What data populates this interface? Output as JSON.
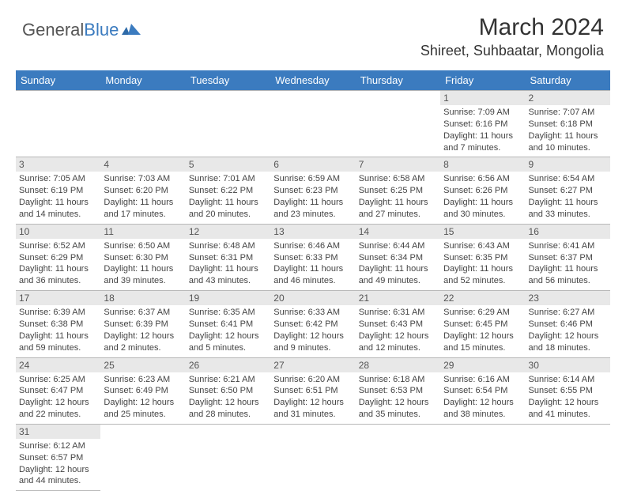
{
  "logo": {
    "general": "General",
    "blue": "Blue"
  },
  "title": "March 2024",
  "location": "Shireet, Suhbaatar, Mongolia",
  "colors": {
    "header_bg": "#3b7bbf",
    "header_text": "#ffffff",
    "daynum_bg": "#e8e8e8",
    "text": "#444444",
    "border": "#b8b8b8"
  },
  "dayHeaders": [
    "Sunday",
    "Monday",
    "Tuesday",
    "Wednesday",
    "Thursday",
    "Friday",
    "Saturday"
  ],
  "weeks": [
    [
      {
        "n": "",
        "sr": "",
        "ss": "",
        "dl": ""
      },
      {
        "n": "",
        "sr": "",
        "ss": "",
        "dl": ""
      },
      {
        "n": "",
        "sr": "",
        "ss": "",
        "dl": ""
      },
      {
        "n": "",
        "sr": "",
        "ss": "",
        "dl": ""
      },
      {
        "n": "",
        "sr": "",
        "ss": "",
        "dl": ""
      },
      {
        "n": "1",
        "sr": "Sunrise: 7:09 AM",
        "ss": "Sunset: 6:16 PM",
        "dl": "Daylight: 11 hours and 7 minutes."
      },
      {
        "n": "2",
        "sr": "Sunrise: 7:07 AM",
        "ss": "Sunset: 6:18 PM",
        "dl": "Daylight: 11 hours and 10 minutes."
      }
    ],
    [
      {
        "n": "3",
        "sr": "Sunrise: 7:05 AM",
        "ss": "Sunset: 6:19 PM",
        "dl": "Daylight: 11 hours and 14 minutes."
      },
      {
        "n": "4",
        "sr": "Sunrise: 7:03 AM",
        "ss": "Sunset: 6:20 PM",
        "dl": "Daylight: 11 hours and 17 minutes."
      },
      {
        "n": "5",
        "sr": "Sunrise: 7:01 AM",
        "ss": "Sunset: 6:22 PM",
        "dl": "Daylight: 11 hours and 20 minutes."
      },
      {
        "n": "6",
        "sr": "Sunrise: 6:59 AM",
        "ss": "Sunset: 6:23 PM",
        "dl": "Daylight: 11 hours and 23 minutes."
      },
      {
        "n": "7",
        "sr": "Sunrise: 6:58 AM",
        "ss": "Sunset: 6:25 PM",
        "dl": "Daylight: 11 hours and 27 minutes."
      },
      {
        "n": "8",
        "sr": "Sunrise: 6:56 AM",
        "ss": "Sunset: 6:26 PM",
        "dl": "Daylight: 11 hours and 30 minutes."
      },
      {
        "n": "9",
        "sr": "Sunrise: 6:54 AM",
        "ss": "Sunset: 6:27 PM",
        "dl": "Daylight: 11 hours and 33 minutes."
      }
    ],
    [
      {
        "n": "10",
        "sr": "Sunrise: 6:52 AM",
        "ss": "Sunset: 6:29 PM",
        "dl": "Daylight: 11 hours and 36 minutes."
      },
      {
        "n": "11",
        "sr": "Sunrise: 6:50 AM",
        "ss": "Sunset: 6:30 PM",
        "dl": "Daylight: 11 hours and 39 minutes."
      },
      {
        "n": "12",
        "sr": "Sunrise: 6:48 AM",
        "ss": "Sunset: 6:31 PM",
        "dl": "Daylight: 11 hours and 43 minutes."
      },
      {
        "n": "13",
        "sr": "Sunrise: 6:46 AM",
        "ss": "Sunset: 6:33 PM",
        "dl": "Daylight: 11 hours and 46 minutes."
      },
      {
        "n": "14",
        "sr": "Sunrise: 6:44 AM",
        "ss": "Sunset: 6:34 PM",
        "dl": "Daylight: 11 hours and 49 minutes."
      },
      {
        "n": "15",
        "sr": "Sunrise: 6:43 AM",
        "ss": "Sunset: 6:35 PM",
        "dl": "Daylight: 11 hours and 52 minutes."
      },
      {
        "n": "16",
        "sr": "Sunrise: 6:41 AM",
        "ss": "Sunset: 6:37 PM",
        "dl": "Daylight: 11 hours and 56 minutes."
      }
    ],
    [
      {
        "n": "17",
        "sr": "Sunrise: 6:39 AM",
        "ss": "Sunset: 6:38 PM",
        "dl": "Daylight: 11 hours and 59 minutes."
      },
      {
        "n": "18",
        "sr": "Sunrise: 6:37 AM",
        "ss": "Sunset: 6:39 PM",
        "dl": "Daylight: 12 hours and 2 minutes."
      },
      {
        "n": "19",
        "sr": "Sunrise: 6:35 AM",
        "ss": "Sunset: 6:41 PM",
        "dl": "Daylight: 12 hours and 5 minutes."
      },
      {
        "n": "20",
        "sr": "Sunrise: 6:33 AM",
        "ss": "Sunset: 6:42 PM",
        "dl": "Daylight: 12 hours and 9 minutes."
      },
      {
        "n": "21",
        "sr": "Sunrise: 6:31 AM",
        "ss": "Sunset: 6:43 PM",
        "dl": "Daylight: 12 hours and 12 minutes."
      },
      {
        "n": "22",
        "sr": "Sunrise: 6:29 AM",
        "ss": "Sunset: 6:45 PM",
        "dl": "Daylight: 12 hours and 15 minutes."
      },
      {
        "n": "23",
        "sr": "Sunrise: 6:27 AM",
        "ss": "Sunset: 6:46 PM",
        "dl": "Daylight: 12 hours and 18 minutes."
      }
    ],
    [
      {
        "n": "24",
        "sr": "Sunrise: 6:25 AM",
        "ss": "Sunset: 6:47 PM",
        "dl": "Daylight: 12 hours and 22 minutes."
      },
      {
        "n": "25",
        "sr": "Sunrise: 6:23 AM",
        "ss": "Sunset: 6:49 PM",
        "dl": "Daylight: 12 hours and 25 minutes."
      },
      {
        "n": "26",
        "sr": "Sunrise: 6:21 AM",
        "ss": "Sunset: 6:50 PM",
        "dl": "Daylight: 12 hours and 28 minutes."
      },
      {
        "n": "27",
        "sr": "Sunrise: 6:20 AM",
        "ss": "Sunset: 6:51 PM",
        "dl": "Daylight: 12 hours and 31 minutes."
      },
      {
        "n": "28",
        "sr": "Sunrise: 6:18 AM",
        "ss": "Sunset: 6:53 PM",
        "dl": "Daylight: 12 hours and 35 minutes."
      },
      {
        "n": "29",
        "sr": "Sunrise: 6:16 AM",
        "ss": "Sunset: 6:54 PM",
        "dl": "Daylight: 12 hours and 38 minutes."
      },
      {
        "n": "30",
        "sr": "Sunrise: 6:14 AM",
        "ss": "Sunset: 6:55 PM",
        "dl": "Daylight: 12 hours and 41 minutes."
      }
    ],
    [
      {
        "n": "31",
        "sr": "Sunrise: 6:12 AM",
        "ss": "Sunset: 6:57 PM",
        "dl": "Daylight: 12 hours and 44 minutes."
      },
      {
        "n": "",
        "sr": "",
        "ss": "",
        "dl": ""
      },
      {
        "n": "",
        "sr": "",
        "ss": "",
        "dl": ""
      },
      {
        "n": "",
        "sr": "",
        "ss": "",
        "dl": ""
      },
      {
        "n": "",
        "sr": "",
        "ss": "",
        "dl": ""
      },
      {
        "n": "",
        "sr": "",
        "ss": "",
        "dl": ""
      },
      {
        "n": "",
        "sr": "",
        "ss": "",
        "dl": ""
      }
    ]
  ]
}
